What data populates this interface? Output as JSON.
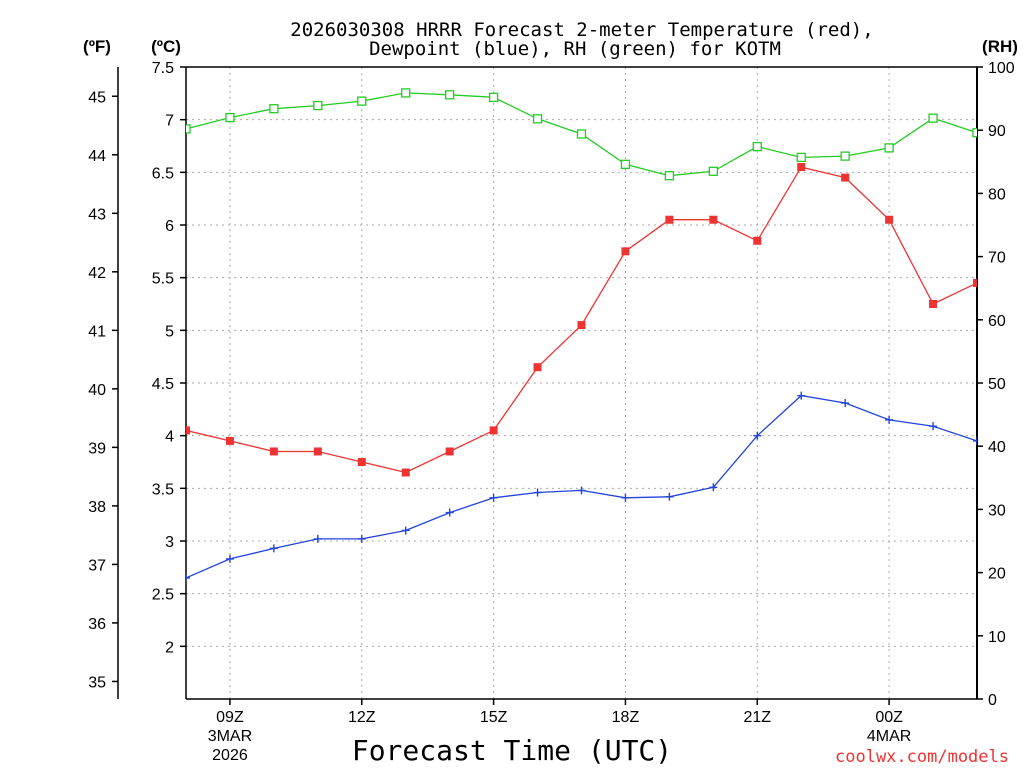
{
  "chart_data": {
    "type": "line",
    "title_line1": "2026030308 HRRR Forecast 2-meter Temperature (red),",
    "title_line2": "Dewpoint (blue), RH (green) for KOTM",
    "xlabel": "Forecast Time (UTC)",
    "credit": "coolwx.com/models",
    "units": {
      "fahrenheit": "(ºF)",
      "celsius": "(ºC)",
      "rh": "(RH)"
    },
    "x_range_hours": [
      8,
      26
    ],
    "x_ticks": [
      {
        "hour": 9,
        "label": "09Z",
        "sub1": "3MAR",
        "sub2": "2026"
      },
      {
        "hour": 12,
        "label": "12Z",
        "sub1": "",
        "sub2": ""
      },
      {
        "hour": 15,
        "label": "15Z",
        "sub1": "",
        "sub2": ""
      },
      {
        "hour": 18,
        "label": "18Z",
        "sub1": "",
        "sub2": ""
      },
      {
        "hour": 21,
        "label": "21Z",
        "sub1": "",
        "sub2": ""
      },
      {
        "hour": 24,
        "label": "00Z",
        "sub1": "4MAR",
        "sub2": ""
      }
    ],
    "celsius_axis": {
      "min": 1.5,
      "max": 7.5,
      "ticks": [
        "2",
        "2.5",
        "3",
        "3.5",
        "4",
        "4.5",
        "5",
        "5.5",
        "6",
        "6.5",
        "7",
        "7.5"
      ]
    },
    "fahrenheit_axis": {
      "min": 34.7,
      "max": 45.5,
      "ticks": [
        "35",
        "36",
        "37",
        "38",
        "39",
        "40",
        "41",
        "42",
        "43",
        "44",
        "45"
      ]
    },
    "rh_axis": {
      "min": 0,
      "max": 100,
      "ticks": [
        "0",
        "10",
        "20",
        "30",
        "40",
        "50",
        "60",
        "70",
        "80",
        "90",
        "100"
      ]
    },
    "series": [
      {
        "name": "Temperature",
        "axis": "celsius",
        "color": "#ee3333",
        "marker": "filled-square",
        "x": [
          8,
          9,
          10,
          11,
          12,
          13,
          14,
          15,
          16,
          17,
          18,
          19,
          20,
          21,
          22,
          23,
          24,
          25,
          26
        ],
        "values": [
          4.05,
          3.95,
          3.85,
          3.85,
          3.75,
          3.65,
          3.85,
          4.05,
          4.65,
          5.05,
          5.75,
          6.05,
          6.05,
          5.85,
          6.55,
          6.45,
          6.05,
          5.25,
          5.45
        ]
      },
      {
        "name": "Dewpoint",
        "axis": "celsius",
        "color": "#2244dd",
        "marker": "plus",
        "x": [
          8,
          9,
          10,
          11,
          12,
          13,
          14,
          15,
          16,
          17,
          18,
          19,
          20,
          21,
          22,
          23,
          24,
          25,
          26
        ],
        "values": [
          2.65,
          2.83,
          2.93,
          3.02,
          3.02,
          3.1,
          3.27,
          3.41,
          3.46,
          3.48,
          3.41,
          3.42,
          3.51,
          4.0,
          4.38,
          4.31,
          4.15,
          4.09,
          3.95
        ]
      },
      {
        "name": "RH",
        "axis": "rh",
        "color": "#22cc22",
        "marker": "open-square",
        "x": [
          8,
          9,
          10,
          11,
          12,
          13,
          14,
          15,
          16,
          17,
          18,
          19,
          20,
          21,
          22,
          23,
          24,
          25,
          26
        ],
        "values": [
          90.2,
          92.0,
          93.4,
          93.9,
          94.6,
          95.9,
          95.6,
          95.2,
          91.8,
          89.4,
          84.6,
          82.8,
          83.5,
          87.4,
          85.7,
          85.9,
          87.2,
          91.9,
          89.6
        ]
      }
    ]
  }
}
